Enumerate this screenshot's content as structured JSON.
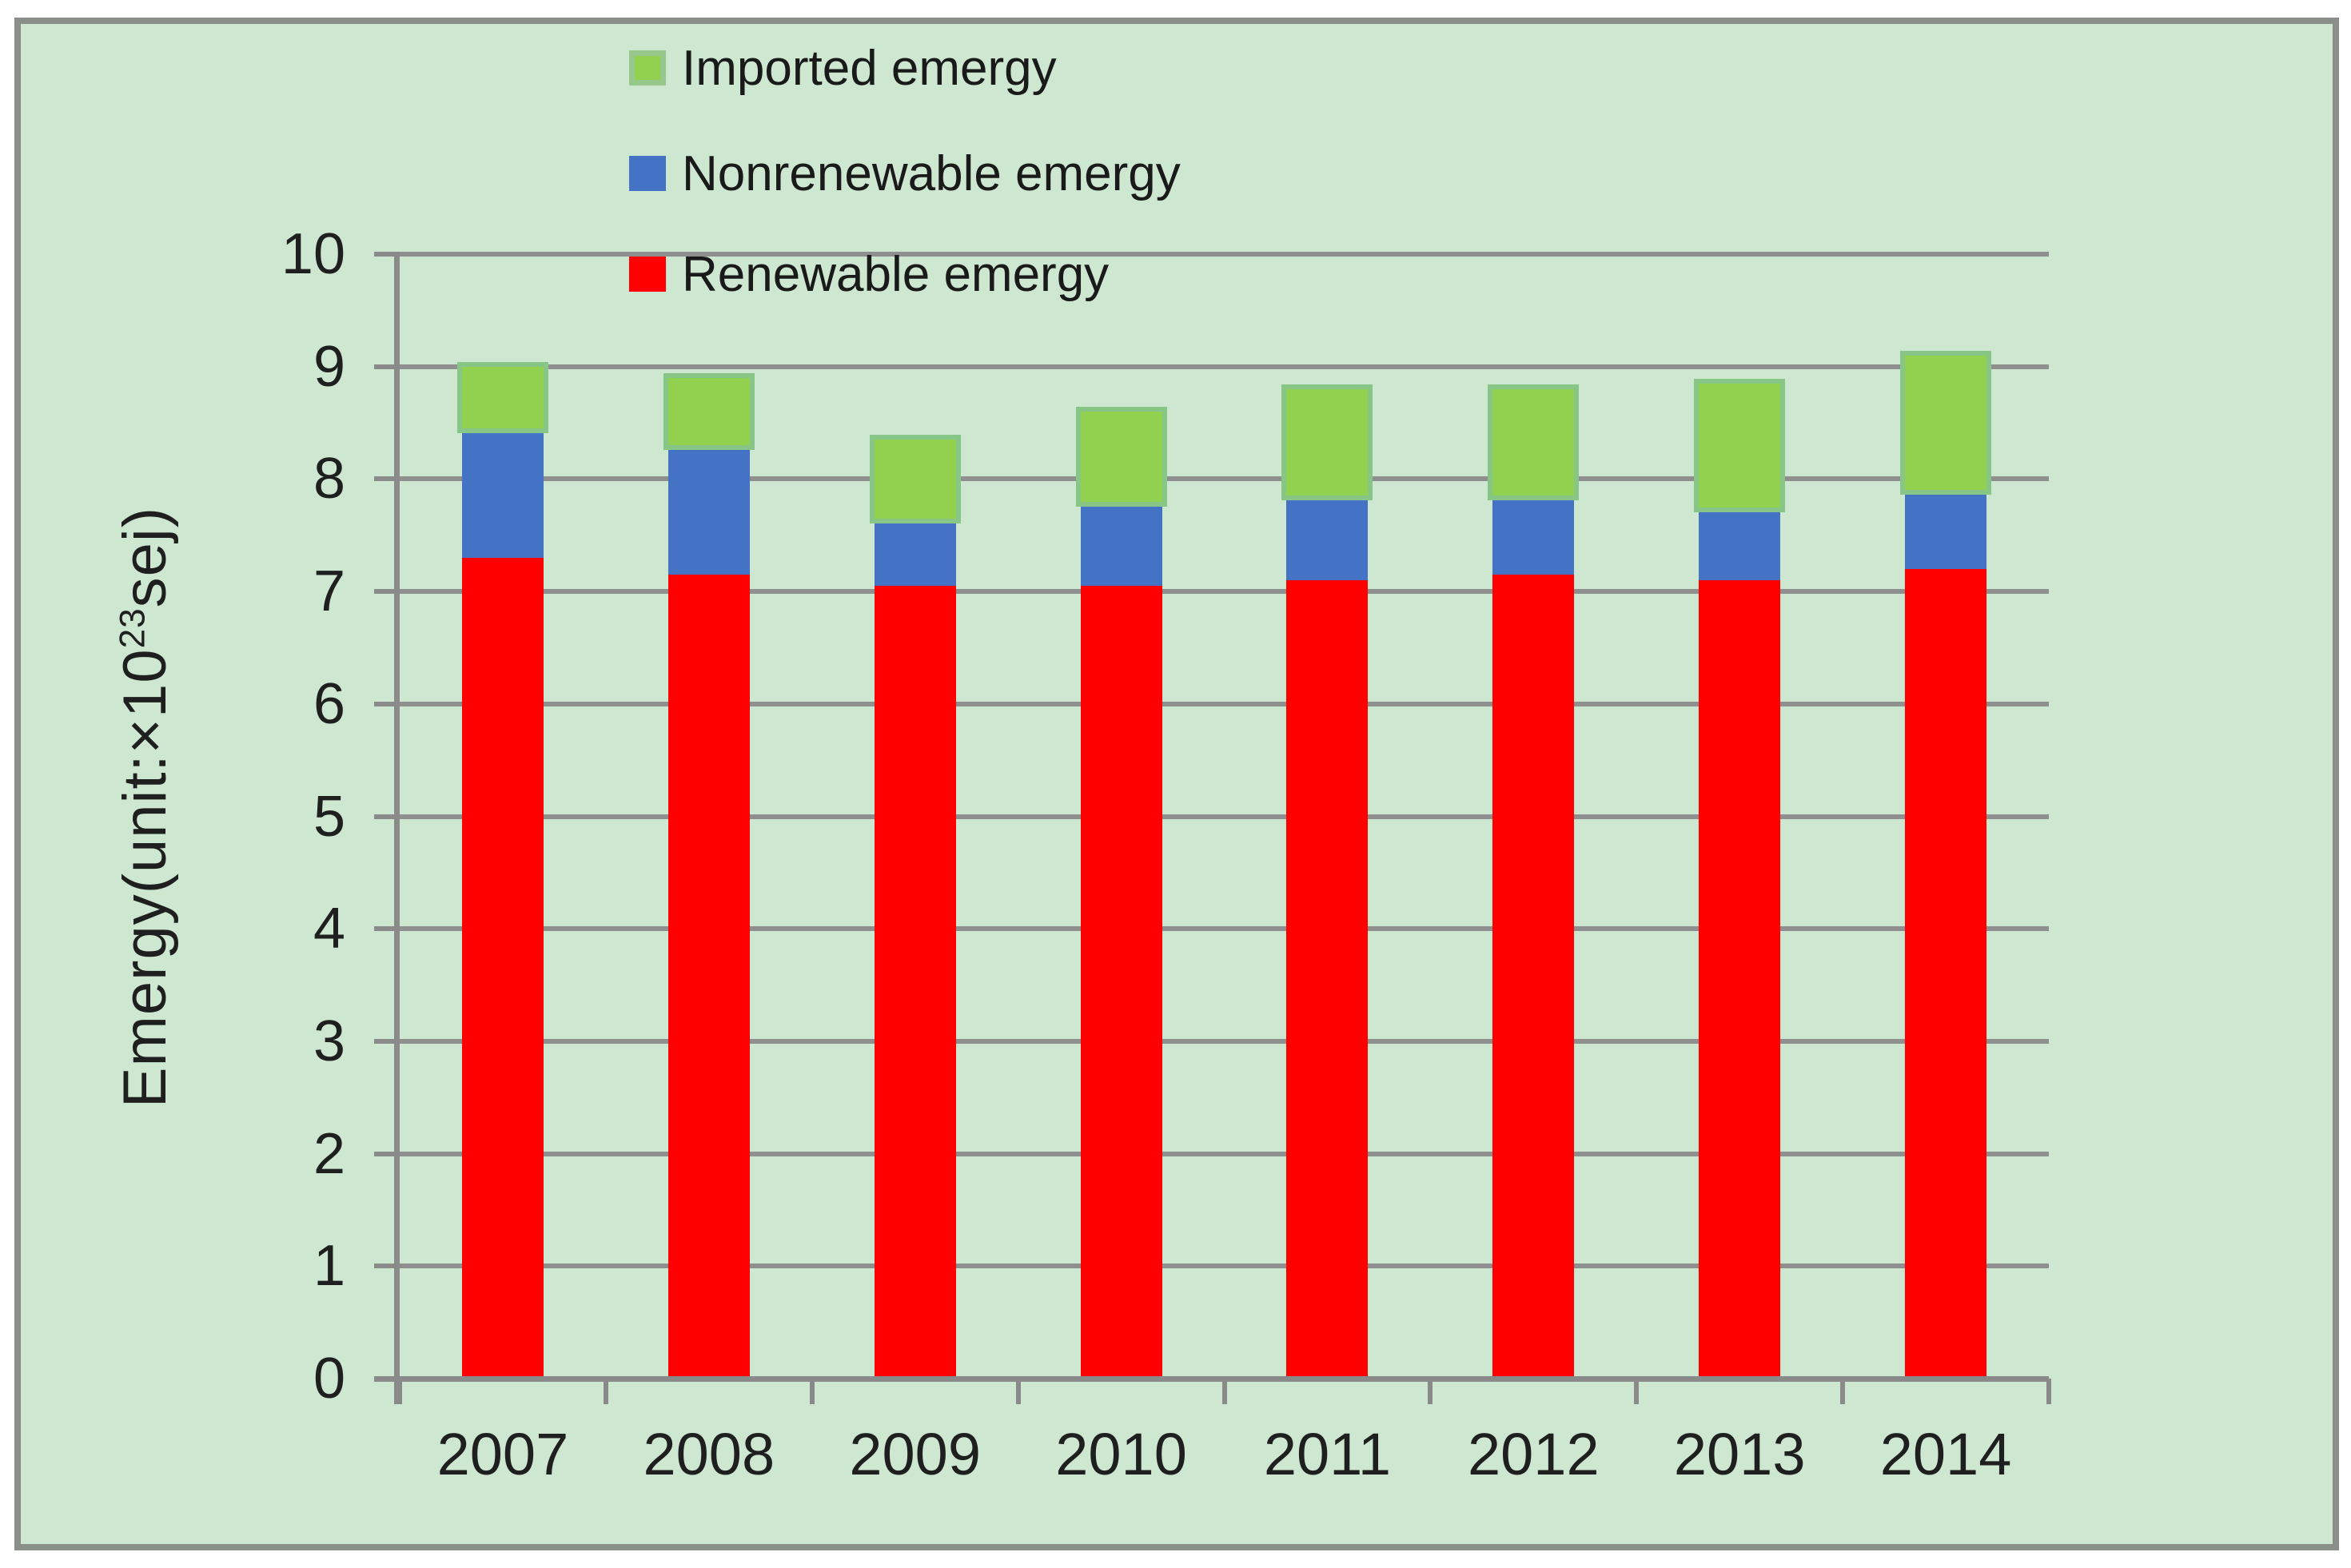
{
  "figure": {
    "background_color": "#cde7d0",
    "frame_border_color": "#8a8f8a",
    "grid_color": "#8f8f8f",
    "axis_color": "#8a8a8a",
    "text_color": "#1f1f1f"
  },
  "y_axis": {
    "title_prefix": "Emergy(unit:×10",
    "title_superscript": "23",
    "title_suffix": "sej)",
    "tick_labels": [
      "0",
      "1",
      "2",
      "3",
      "4",
      "5",
      "6",
      "7",
      "8",
      "9",
      "10"
    ]
  },
  "x_axis": {
    "tick_labels": [
      "2007",
      "2008",
      "2009",
      "2010",
      "2011",
      "2012",
      "2013",
      "2014"
    ]
  },
  "legend": {
    "items": [
      {
        "label": "Imported emergy",
        "color": "#92d050",
        "border_color": "#97c88b"
      },
      {
        "label": "Nonrenewable emergy",
        "color": "#4472c4",
        "border_color": ""
      },
      {
        "label": "Renewable emergy",
        "color": "#ff0000",
        "border_color": ""
      }
    ]
  },
  "chart_data": {
    "type": "bar",
    "stacked": true,
    "title": "",
    "xlabel": "",
    "ylabel": "Emergy(unit:×10²³sej)",
    "ylim": [
      0,
      10
    ],
    "y_tick_step": 1,
    "grid": true,
    "legend_position": "top-left-inside-vertical",
    "categories": [
      "2007",
      "2008",
      "2009",
      "2010",
      "2011",
      "2012",
      "2013",
      "2014"
    ],
    "series": [
      {
        "name": "Renewable emergy",
        "color": "#ff0000",
        "values": [
          7.3,
          7.15,
          7.05,
          7.05,
          7.1,
          7.15,
          7.1,
          7.2
        ]
      },
      {
        "name": "Nonrenewable emergy",
        "color": "#4472c4",
        "values": [
          1.15,
          1.15,
          0.6,
          0.75,
          0.75,
          0.7,
          0.65,
          0.7
        ]
      },
      {
        "name": "Imported emergy",
        "color": "#92d050",
        "border_color": "#87c687",
        "values": [
          0.55,
          0.6,
          0.7,
          0.8,
          0.95,
          0.95,
          1.1,
          1.2
        ]
      }
    ],
    "stack_totals": [
      9.0,
      8.9,
      8.35,
      8.6,
      8.8,
      8.8,
      8.85,
      9.1
    ]
  }
}
